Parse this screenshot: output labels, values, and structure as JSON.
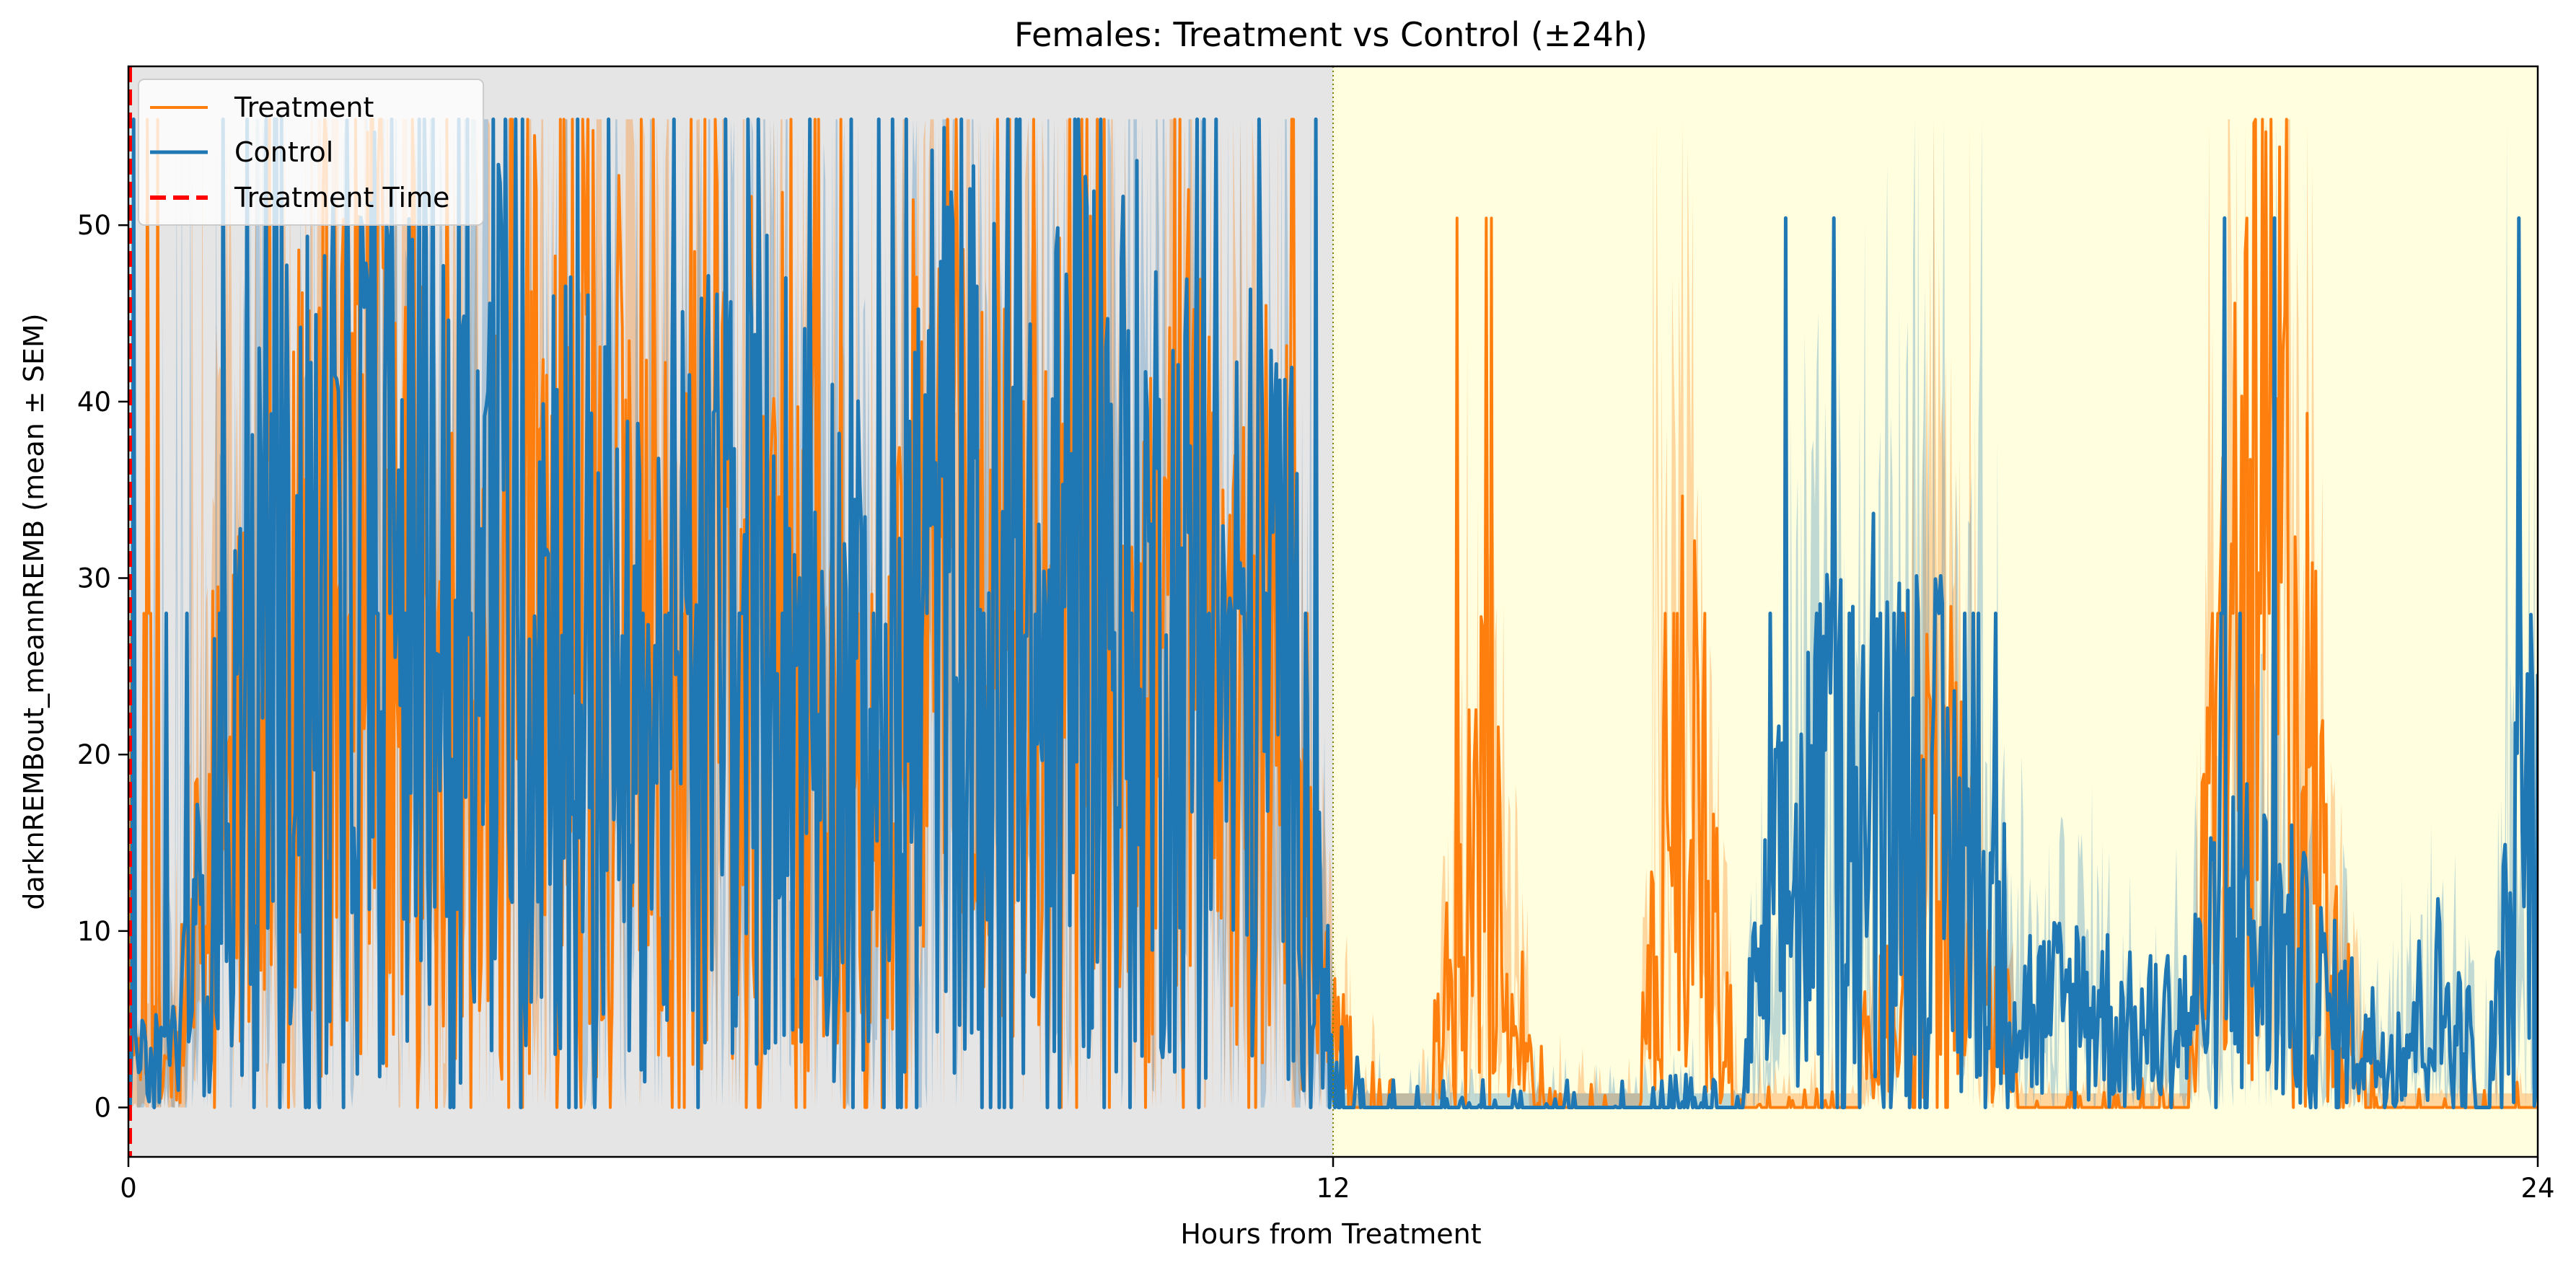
{
  "chart_data": {
    "type": "line",
    "title": "Females: Treatment vs Control (±24h)",
    "xlabel": "Hours from Treatment",
    "ylabel": "darknREMBout_meannREMB (mean ± SEM)",
    "xlim": [
      0,
      24
    ],
    "ylim": [
      -2.8,
      59
    ],
    "xticks": [
      0,
      12,
      24
    ],
    "yticks": [
      0,
      10,
      20,
      30,
      40,
      50
    ],
    "grid": false,
    "legend": "upper-left",
    "treatment_time": 0,
    "dark_period": [
      0,
      12
    ],
    "light_period": [
      12,
      24
    ],
    "colors": {
      "treatment": "#ff7f0e",
      "control": "#1f77b4",
      "treatment_time": "#ff0000",
      "dark_shade": "#e5e5e5",
      "light_shade": "#ffffe0"
    },
    "series": [
      {
        "name": "Treatment",
        "x": [
          0,
          0.5,
          1,
          1.5,
          2,
          2.5,
          3,
          3.5,
          4,
          4.5,
          5,
          5.5,
          6,
          6.5,
          7,
          7.5,
          8,
          8.5,
          9,
          9.5,
          10,
          10.5,
          11,
          11.5,
          12,
          12.5,
          13,
          13.5,
          14,
          14.5,
          15,
          15.5,
          16,
          16.5,
          17,
          17.5,
          18,
          18.5,
          19,
          19.5,
          20,
          20.5,
          21,
          21.5,
          22,
          22.5,
          23,
          23.5,
          24
        ],
        "values": [
          2,
          5,
          20,
          22,
          30,
          33,
          28,
          20,
          28,
          33,
          28,
          23,
          30,
          28,
          22,
          15,
          33,
          26,
          22,
          32,
          18,
          28,
          20,
          25,
          4,
          1,
          3,
          14,
          2,
          1,
          0.5,
          22,
          2,
          0.5,
          1,
          5,
          18,
          6,
          1,
          0.5,
          1,
          0.5,
          28,
          30,
          6,
          0.5,
          0.5,
          0.5,
          0.5
        ]
      },
      {
        "name": "Control",
        "x": [
          0,
          0.5,
          1,
          1.5,
          2,
          2.5,
          3,
          3.5,
          4,
          4.5,
          5,
          5.5,
          6,
          6.5,
          7,
          7.5,
          8,
          8.5,
          9,
          9.5,
          10,
          10.5,
          11,
          11.5,
          12,
          12.5,
          13,
          13.5,
          14,
          14.5,
          15,
          15.5,
          16,
          16.5,
          17,
          17.5,
          18,
          18.5,
          19,
          19.5,
          20,
          20.5,
          21,
          21.5,
          22,
          22.5,
          23,
          23.5,
          24
        ],
        "values": [
          2,
          4,
          18,
          25,
          28,
          30,
          25,
          28,
          30,
          26,
          20,
          24,
          27,
          26,
          24,
          18,
          30,
          28,
          23,
          30,
          28,
          26,
          24,
          26,
          3,
          0.5,
          0.5,
          0.5,
          1,
          0.5,
          0.5,
          1,
          1,
          12,
          15,
          18,
          15,
          10,
          5,
          6,
          4,
          5,
          10,
          8,
          5,
          3,
          6,
          2,
          18
        ]
      },
      {
        "name": "Treatment Time",
        "x": [
          0,
          0
        ],
        "values": [
          -2.8,
          59
        ]
      }
    ]
  }
}
